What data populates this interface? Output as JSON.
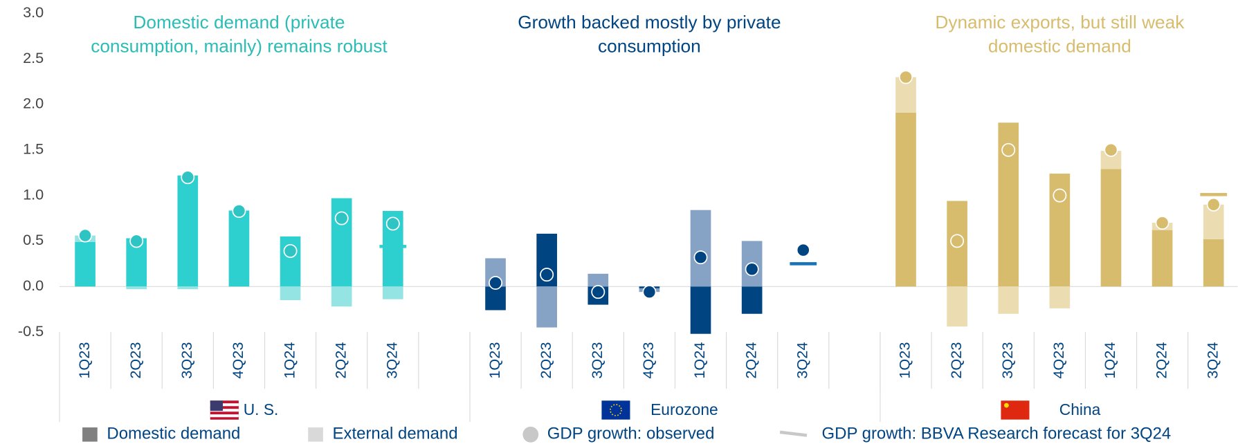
{
  "chart_data": {
    "type": "bar",
    "ylim": [
      -0.5,
      3
    ],
    "yticks": [
      {
        "value": -0.5,
        "label": "-0.5"
      },
      {
        "value": 0,
        "label": "0.0"
      },
      {
        "value": 0.5,
        "label": "0.5"
      },
      {
        "value": 1,
        "label": "1.0"
      },
      {
        "value": 1.5,
        "label": "1.5"
      },
      {
        "value": 2,
        "label": "2.0"
      },
      {
        "value": 2.5,
        "label": "2.5"
      },
      {
        "value": 3,
        "label": "3.0"
      }
    ],
    "legend": [
      {
        "name": "Domestic demand",
        "color": "#808080"
      },
      {
        "name": "External demand",
        "color": "#d9d9d9"
      },
      {
        "name": "GDP growth: observed",
        "color": "#c8c8c8"
      },
      {
        "name": "GDP growth: BBVA Research forecast for 3Q24",
        "color": "#c8c8c8"
      }
    ],
    "groups": [
      {
        "name": "U. S.",
        "title": [
          "Domestic demand (private",
          "consumption, mainly) remains robust"
        ],
        "title_color": "#2bbdb5",
        "categories": [
          "1Q23",
          "2Q23",
          "3Q23",
          "4Q23",
          "1Q24",
          "2Q24",
          "3Q24"
        ],
        "domestic_color": "#2ecfcf",
        "external_color": "#95e4e4",
        "dot_color": "#2ec4c4",
        "forecast_color": "#2ecfcf",
        "domestic": [
          0.49,
          0.53,
          1.22,
          0.83,
          0.55,
          0.97,
          0.83
        ],
        "external": [
          0.07,
          -0.03,
          -0.03,
          0.01,
          -0.15,
          -0.22,
          -0.14
        ],
        "gdp": [
          0.56,
          0.5,
          1.2,
          0.83,
          0.39,
          0.75,
          0.69
        ],
        "forecast": [
          null,
          null,
          null,
          null,
          null,
          null,
          0.44
        ]
      },
      {
        "name": "Eurozone",
        "title": [
          "Growth backed mostly by private",
          "consumption"
        ],
        "title_color": "#004481",
        "categories": [
          "1Q23",
          "2Q23",
          "3Q23",
          "4Q23",
          "1Q24",
          "2Q24",
          "3Q24"
        ],
        "domestic_color": "#004481",
        "external_color": "#86a2c4",
        "dot_color": "#004481",
        "forecast_color": "#1973b8",
        "domestic": [
          -0.26,
          0.58,
          -0.2,
          -0.02,
          -0.52,
          -0.3,
          null
        ],
        "external": [
          0.31,
          -0.45,
          0.14,
          -0.04,
          0.84,
          0.5,
          null
        ],
        "gdp": [
          0.04,
          0.13,
          -0.06,
          -0.06,
          0.32,
          0.19,
          0.4
        ],
        "forecast": [
          null,
          null,
          null,
          null,
          null,
          null,
          0.25
        ]
      },
      {
        "name": "China",
        "title": [
          "Dynamic exports, but still weak",
          "domestic demand"
        ],
        "title_color": "#d8bc6d",
        "categories": [
          "1Q23",
          "2Q23",
          "3Q23",
          "4Q23",
          "1Q24",
          "2Q24",
          "3Q24"
        ],
        "domestic_color": "#d8bc6d",
        "external_color": "#ecdcb2",
        "dot_color": "#d8bc6d",
        "forecast_color": "#d8bc6d",
        "domestic": [
          1.91,
          0.94,
          1.8,
          1.24,
          1.29,
          0.62,
          0.52
        ],
        "external": [
          0.39,
          -0.44,
          -0.3,
          -0.24,
          0.2,
          0.08,
          0.38
        ],
        "gdp": [
          2.3,
          0.5,
          1.5,
          1.0,
          1.5,
          0.7,
          0.9
        ],
        "forecast": [
          null,
          null,
          null,
          null,
          null,
          null,
          1.01
        ]
      }
    ]
  }
}
